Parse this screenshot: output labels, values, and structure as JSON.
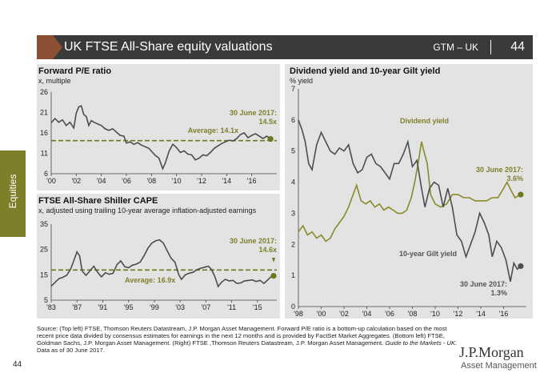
{
  "header": {
    "title": "UK FTSE All-Share equity valuations",
    "gtm": "GTM – UK",
    "page": "44"
  },
  "side_tab": "Equities",
  "panels": {
    "pe": {
      "title": "Forward P/E ratio",
      "subtitle": "x, multiple"
    },
    "cape": {
      "title": "FTSE All-Share Shiller CAPE",
      "subtitle": "x, adjusted using trailing 10-year average inflation-adjusted earnings"
    },
    "yield": {
      "title": "Dividend yield and 10-year Gilt yield",
      "subtitle": "% yield"
    }
  },
  "source": "Source: (Top left) FTSE, Thomson Reuters Datastream, J.P. Morgan Asset Management. Forward P/E ratio is a bottom-up calculation based on the most recent price data divided by consensus estimates for earnings in the next 12 months and is provided by FactSet Market Aggregates. (Bottom left) FTSE, Goldman Sachs, J.P. Morgan Asset Management. (Right) FTSE ,Thomson Reuters Datastream, J.P. Morgan Asset Management.",
  "source_italic": "Guide to the Markets - UK.",
  "data_as_of": "Data as of 30 June 2017.",
  "page_footer": "44",
  "logo": {
    "line1": "J.P.Morgan",
    "line2": "Asset Management"
  },
  "colors": {
    "accent": "#7f7f2a",
    "line_dark": "#4d4d4d",
    "average": "#6b7a1f",
    "header_bg": "#3a3a3a",
    "panel_bg": "#e3e3e3"
  },
  "chart_data": [
    {
      "type": "line",
      "title": "Forward P/E ratio",
      "ylabel": "x, multiple",
      "ylim": [
        6,
        26
      ],
      "yticks": [
        6,
        11,
        16,
        21,
        26
      ],
      "xlim": [
        2000,
        2018
      ],
      "xtick_labels": [
        "'00",
        "'02",
        "'04",
        "'06",
        "'08",
        "'10",
        "'12",
        "'14",
        "'16"
      ],
      "xtick_values": [
        2000,
        2002,
        2004,
        2006,
        2008,
        2010,
        2012,
        2014,
        2016
      ],
      "series": [
        {
          "values": [
            [
              2000.0,
              18.5
            ],
            [
              2000.3,
              19.5
            ],
            [
              2000.6,
              18.6
            ],
            [
              2000.9,
              19.2
            ],
            [
              2001.2,
              17.8
            ],
            [
              2001.5,
              18.6
            ],
            [
              2001.8,
              17.2
            ],
            [
              2002.0,
              20.8
            ],
            [
              2002.2,
              22.4
            ],
            [
              2002.4,
              22.6
            ],
            [
              2002.6,
              20.5
            ],
            [
              2002.8,
              20.0
            ],
            [
              2003.0,
              17.8
            ],
            [
              2003.2,
              19.0
            ],
            [
              2003.4,
              18.6
            ],
            [
              2003.7,
              18.2
            ],
            [
              2004.0,
              17.8
            ],
            [
              2004.3,
              17.0
            ],
            [
              2004.6,
              16.6
            ],
            [
              2004.9,
              17.0
            ],
            [
              2005.2,
              16.2
            ],
            [
              2005.5,
              15.4
            ],
            [
              2005.8,
              15.2
            ],
            [
              2006.0,
              13.5
            ],
            [
              2006.3,
              13.8
            ],
            [
              2006.6,
              13.2
            ],
            [
              2006.9,
              13.6
            ],
            [
              2007.2,
              13.0
            ],
            [
              2007.5,
              12.6
            ],
            [
              2007.8,
              12.2
            ],
            [
              2008.0,
              11.5
            ],
            [
              2008.3,
              10.5
            ],
            [
              2008.6,
              9.8
            ],
            [
              2008.9,
              7.2
            ],
            [
              2009.1,
              8.6
            ],
            [
              2009.4,
              11.5
            ],
            [
              2009.7,
              13.2
            ],
            [
              2010.0,
              12.4
            ],
            [
              2010.3,
              11.2
            ],
            [
              2010.6,
              11.6
            ],
            [
              2010.9,
              10.8
            ],
            [
              2011.2,
              10.6
            ],
            [
              2011.5,
              9.4
            ],
            [
              2011.8,
              9.8
            ],
            [
              2012.1,
              10.6
            ],
            [
              2012.4,
              10.4
            ],
            [
              2012.7,
              11.2
            ],
            [
              2013.0,
              12.2
            ],
            [
              2013.3,
              12.8
            ],
            [
              2013.6,
              13.4
            ],
            [
              2013.9,
              13.8
            ],
            [
              2014.2,
              14.2
            ],
            [
              2014.5,
              14.0
            ],
            [
              2014.8,
              14.6
            ],
            [
              2015.1,
              15.6
            ],
            [
              2015.4,
              16.0
            ],
            [
              2015.7,
              14.8
            ],
            [
              2016.0,
              15.4
            ],
            [
              2016.3,
              15.8
            ],
            [
              2016.6,
              15.2
            ],
            [
              2016.9,
              14.6
            ],
            [
              2017.2,
              15.2
            ],
            [
              2017.5,
              14.5
            ]
          ]
        }
      ],
      "average": {
        "value": 14.1,
        "label": "Average: 14.1x"
      },
      "last_label": "30 June 2017:",
      "last_value_label": "14.5x"
    },
    {
      "type": "line",
      "title": "FTSE All-Share Shiller CAPE",
      "ylabel": "x, adjusted using trailing 10-year average inflation-adjusted earnings",
      "ylim": [
        5,
        35
      ],
      "yticks": [
        5,
        15,
        25,
        35
      ],
      "xlim": [
        1983,
        2018
      ],
      "xtick_labels": [
        "'83",
        "'87",
        "'91",
        "'95",
        "'99",
        "'03",
        "'07",
        "'11",
        "'15"
      ],
      "xtick_values": [
        1983,
        1987,
        1991,
        1995,
        1999,
        2003,
        2007,
        2011,
        2015
      ],
      "series": [
        {
          "values": [
            [
              1983.0,
              10.5
            ],
            [
              1983.6,
              12.0
            ],
            [
              1984.2,
              13.5
            ],
            [
              1984.8,
              14.0
            ],
            [
              1985.4,
              14.8
            ],
            [
              1986.0,
              17.2
            ],
            [
              1986.5,
              20.5
            ],
            [
              1987.0,
              24.0
            ],
            [
              1987.4,
              22.5
            ],
            [
              1987.8,
              16.5
            ],
            [
              1988.4,
              14.8
            ],
            [
              1989.0,
              16.5
            ],
            [
              1989.6,
              18.4
            ],
            [
              1990.2,
              16.0
            ],
            [
              1990.8,
              14.2
            ],
            [
              1991.4,
              15.8
            ],
            [
              1992.0,
              15.2
            ],
            [
              1992.6,
              15.6
            ],
            [
              1993.2,
              19.0
            ],
            [
              1993.8,
              20.5
            ],
            [
              1994.4,
              18.2
            ],
            [
              1995.0,
              17.8
            ],
            [
              1995.6,
              18.8
            ],
            [
              1996.2,
              19.2
            ],
            [
              1996.8,
              20.0
            ],
            [
              1997.4,
              22.5
            ],
            [
              1998.0,
              25.5
            ],
            [
              1998.6,
              27.5
            ],
            [
              1999.2,
              28.4
            ],
            [
              1999.8,
              28.8
            ],
            [
              2000.4,
              27.5
            ],
            [
              2001.0,
              24.5
            ],
            [
              2001.6,
              21.5
            ],
            [
              2002.2,
              20.0
            ],
            [
              2002.8,
              15.0
            ],
            [
              2003.2,
              13.2
            ],
            [
              2003.8,
              15.0
            ],
            [
              2004.4,
              15.6
            ],
            [
              2005.0,
              16.0
            ],
            [
              2005.6,
              17.0
            ],
            [
              2006.2,
              17.6
            ],
            [
              2006.8,
              18.0
            ],
            [
              2007.4,
              18.4
            ],
            [
              2007.9,
              17.0
            ],
            [
              2008.4,
              14.2
            ],
            [
              2008.9,
              10.4
            ],
            [
              2009.4,
              12.0
            ],
            [
              2010.0,
              13.2
            ],
            [
              2010.6,
              12.6
            ],
            [
              2011.2,
              12.8
            ],
            [
              2011.8,
              11.6
            ],
            [
              2012.4,
              11.8
            ],
            [
              2013.0,
              12.6
            ],
            [
              2013.6,
              12.8
            ],
            [
              2014.2,
              13.0
            ],
            [
              2014.8,
              12.4
            ],
            [
              2015.4,
              12.8
            ],
            [
              2016.0,
              11.6
            ],
            [
              2016.6,
              13.0
            ],
            [
              2017.0,
              14.0
            ],
            [
              2017.5,
              14.6
            ]
          ]
        }
      ],
      "average": {
        "value": 16.9,
        "label": "Average: 16.9x"
      },
      "last_label": "30 June 2017:",
      "last_value_label": "14.6x"
    },
    {
      "type": "line",
      "title": "Dividend yield and 10-year Gilt yield",
      "ylabel": "% yield",
      "ylim": [
        0,
        7
      ],
      "yticks": [
        0,
        1,
        2,
        3,
        4,
        5,
        6,
        7
      ],
      "xlim": [
        1998,
        2018
      ],
      "xtick_labels": [
        "'98",
        "'00",
        "'02",
        "'04",
        "'06",
        "'08",
        "'10",
        "'12",
        "'14",
        "'16"
      ],
      "xtick_values": [
        1998,
        2000,
        2002,
        2004,
        2006,
        2008,
        2010,
        2012,
        2014,
        2016
      ],
      "series": [
        {
          "name": "Dividend yield",
          "values": [
            [
              1998.0,
              2.4
            ],
            [
              1998.4,
              2.6
            ],
            [
              1998.8,
              2.3
            ],
            [
              1999.2,
              2.4
            ],
            [
              1999.6,
              2.2
            ],
            [
              2000.0,
              2.3
            ],
            [
              2000.4,
              2.1
            ],
            [
              2000.8,
              2.2
            ],
            [
              2001.2,
              2.5
            ],
            [
              2001.6,
              2.7
            ],
            [
              2002.0,
              2.9
            ],
            [
              2002.4,
              3.2
            ],
            [
              2002.8,
              3.6
            ],
            [
              2003.1,
              3.9
            ],
            [
              2003.5,
              3.4
            ],
            [
              2003.9,
              3.3
            ],
            [
              2004.3,
              3.4
            ],
            [
              2004.7,
              3.2
            ],
            [
              2005.1,
              3.3
            ],
            [
              2005.5,
              3.1
            ],
            [
              2005.9,
              3.2
            ],
            [
              2006.3,
              3.1
            ],
            [
              2006.7,
              3.0
            ],
            [
              2007.1,
              3.0
            ],
            [
              2007.5,
              3.1
            ],
            [
              2007.9,
              3.5
            ],
            [
              2008.2,
              4.0
            ],
            [
              2008.5,
              4.6
            ],
            [
              2008.8,
              5.3
            ],
            [
              2009.0,
              5.0
            ],
            [
              2009.3,
              4.6
            ],
            [
              2009.6,
              3.6
            ],
            [
              2010.0,
              3.3
            ],
            [
              2010.5,
              3.2
            ],
            [
              2011.0,
              3.3
            ],
            [
              2011.5,
              3.6
            ],
            [
              2012.0,
              3.6
            ],
            [
              2012.5,
              3.5
            ],
            [
              2013.0,
              3.5
            ],
            [
              2013.5,
              3.4
            ],
            [
              2014.0,
              3.4
            ],
            [
              2014.5,
              3.4
            ],
            [
              2015.0,
              3.5
            ],
            [
              2015.5,
              3.5
            ],
            [
              2016.0,
              3.8
            ],
            [
              2016.3,
              4.0
            ],
            [
              2016.7,
              3.7
            ],
            [
              2017.0,
              3.5
            ],
            [
              2017.5,
              3.6
            ]
          ]
        },
        {
          "name": "10-year Gilt yield",
          "values": [
            [
              1998.0,
              6.0
            ],
            [
              1998.3,
              5.7
            ],
            [
              1998.6,
              5.3
            ],
            [
              1998.9,
              4.6
            ],
            [
              1999.2,
              4.4
            ],
            [
              1999.6,
              5.2
            ],
            [
              2000.0,
              5.6
            ],
            [
              2000.4,
              5.3
            ],
            [
              2000.8,
              5.0
            ],
            [
              2001.2,
              4.9
            ],
            [
              2001.6,
              5.1
            ],
            [
              2002.0,
              5.0
            ],
            [
              2002.4,
              5.2
            ],
            [
              2002.8,
              4.6
            ],
            [
              2003.2,
              4.3
            ],
            [
              2003.6,
              4.4
            ],
            [
              2004.0,
              4.8
            ],
            [
              2004.4,
              4.9
            ],
            [
              2004.8,
              4.6
            ],
            [
              2005.2,
              4.5
            ],
            [
              2005.6,
              4.3
            ],
            [
              2006.0,
              4.1
            ],
            [
              2006.4,
              4.6
            ],
            [
              2006.8,
              4.6
            ],
            [
              2007.2,
              4.9
            ],
            [
              2007.6,
              5.3
            ],
            [
              2008.0,
              4.5
            ],
            [
              2008.4,
              4.7
            ],
            [
              2008.8,
              3.8
            ],
            [
              2009.1,
              3.2
            ],
            [
              2009.5,
              3.8
            ],
            [
              2009.9,
              4.0
            ],
            [
              2010.3,
              3.9
            ],
            [
              2010.7,
              3.2
            ],
            [
              2011.1,
              3.8
            ],
            [
              2011.5,
              3.2
            ],
            [
              2011.9,
              2.3
            ],
            [
              2012.3,
              2.1
            ],
            [
              2012.7,
              1.6
            ],
            [
              2013.1,
              2.0
            ],
            [
              2013.5,
              2.4
            ],
            [
              2013.9,
              3.0
            ],
            [
              2014.3,
              2.7
            ],
            [
              2014.7,
              2.3
            ],
            [
              2015.0,
              1.6
            ],
            [
              2015.4,
              2.1
            ],
            [
              2015.8,
              1.9
            ],
            [
              2016.2,
              1.5
            ],
            [
              2016.6,
              0.8
            ],
            [
              2016.9,
              1.4
            ],
            [
              2017.2,
              1.2
            ],
            [
              2017.5,
              1.3
            ]
          ]
        }
      ],
      "annotations": [
        {
          "text": "Dividend yield"
        },
        {
          "text": "10-year Gilt yield"
        }
      ],
      "last_labels": [
        {
          "label": "30 June 2017:",
          "value": "3.6%"
        },
        {
          "label": "30 June 2017:",
          "value": "1.3%"
        }
      ]
    }
  ]
}
